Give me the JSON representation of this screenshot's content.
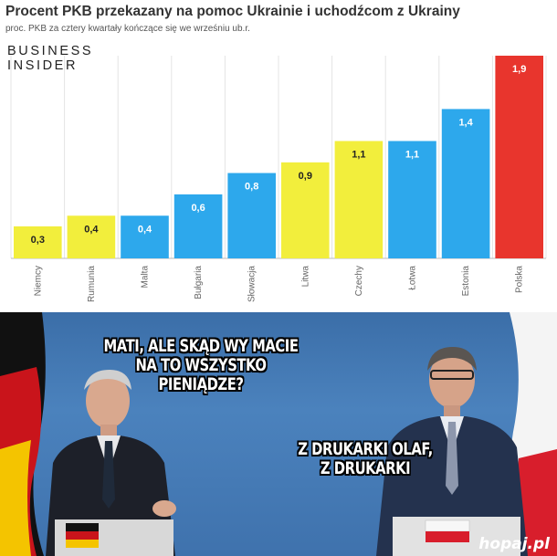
{
  "header": {
    "title": "Procent PKB przekazany na pomoc Ukrainie i uchodźcom z Ukrainy",
    "subtitle": "proc. PKB za cztery kwartały kończące się we wrześniu ub.r."
  },
  "brand": {
    "line1": "BUSINESS",
    "line2": "INSIDER"
  },
  "colors": {
    "yellow": "#f2ee3c",
    "blue": "#2da8ec",
    "red": "#e8352d"
  },
  "chart_data": {
    "type": "bar",
    "title": "Procent PKB przekazany na pomoc Ukrainie i uchodźcom z Ukrainy",
    "subtitle": "proc. PKB za cztery kwartały kończące się we wrześniu ub.r.",
    "categories": [
      "Niemcy",
      "Rumunia",
      "Malta",
      "Bułgaria",
      "Słowacja",
      "Litwa",
      "Czechy",
      "Łotwa",
      "Estonia",
      "Polska"
    ],
    "values": [
      0.3,
      0.4,
      0.4,
      0.6,
      0.8,
      0.9,
      1.1,
      1.1,
      1.4,
      1.9
    ],
    "value_labels": [
      "0,3",
      "0,4",
      "0,4",
      "0,6",
      "0,8",
      "0,9",
      "1,1",
      "1,1",
      "1,4",
      "1,9"
    ],
    "bar_colors": [
      "yellow",
      "yellow",
      "blue",
      "blue",
      "blue",
      "yellow",
      "yellow",
      "blue",
      "blue",
      "red"
    ],
    "ylim": [
      0,
      1.9
    ],
    "grid": true,
    "legend": "none"
  },
  "meme": {
    "caption_left": [
      "MATI, ALE SKĄD WY MACIE",
      "NA TO WSZYSTKO",
      "PIENIĄDZE?"
    ],
    "caption_right": [
      "Z DRUKARKI OLAF,",
      "Z DRUKARKI"
    ]
  },
  "watermark": {
    "text": "hopaj",
    "suffix": ".pl"
  }
}
